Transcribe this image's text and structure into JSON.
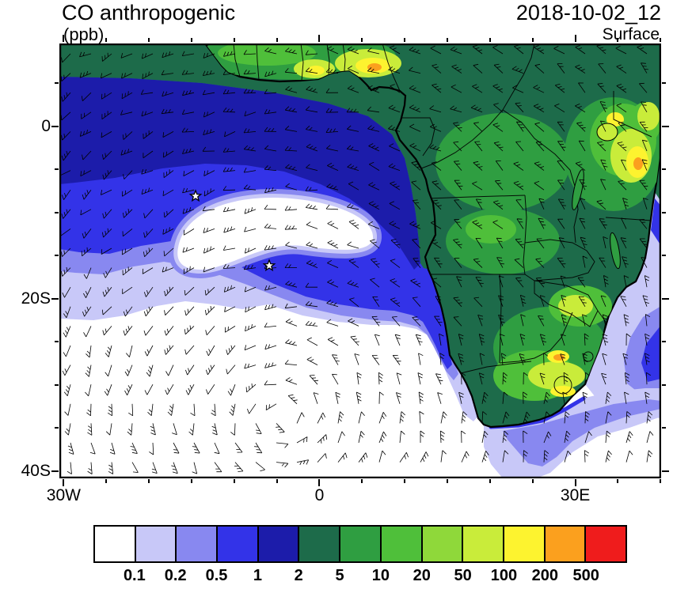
{
  "header": {
    "title": "CO anthropogenic",
    "units_label": "(ppb)",
    "datetime": "2018-10-02_12",
    "level": "Surface"
  },
  "axes": {
    "y_ticks": [
      {
        "label": "0",
        "lat": 0
      },
      {
        "label": "20S",
        "lat": -20
      },
      {
        "label": "40S",
        "lat": -40
      }
    ],
    "x_ticks": [
      {
        "label": "30W",
        "lon": -30
      },
      {
        "label": "0",
        "lon": 0
      },
      {
        "label": "30E",
        "lon": 30
      }
    ],
    "lon_minor_ticks": [
      -25,
      -20,
      -15,
      -10,
      -5,
      5,
      10,
      15,
      20,
      25,
      35,
      40
    ],
    "lat_minor_ticks": [
      5,
      -5,
      -10,
      -15,
      -25,
      -30,
      -35
    ]
  },
  "colorbar": {
    "labels": [
      "0.1",
      "0.2",
      "0.5",
      "1",
      "2",
      "5",
      "10",
      "20",
      "50",
      "100",
      "200",
      "500"
    ],
    "colors": [
      "#ffffff",
      "#c8c8f8",
      "#8888f0",
      "#3333e8",
      "#1c1caa",
      "#1d6b4a",
      "#2f9e41",
      "#4fbf3a",
      "#8fd83a",
      "#c9ec3a",
      "#fdf32f",
      "#fba01e",
      "#ef1c1c"
    ]
  },
  "markers": [
    {
      "symbol": "star",
      "approx_lon": -14.5,
      "approx_lat": -8
    },
    {
      "symbol": "star",
      "approx_lon": -5.5,
      "approx_lat": -16
    }
  ],
  "chart_data": {
    "type": "heatmap",
    "title": "CO anthropogenic",
    "units": "ppb",
    "valid_time": "2018-10-02_12",
    "level": "Surface",
    "lon_range_deg_east": [
      -30.5,
      40.3
    ],
    "lat_range_deg_north": [
      -40.8,
      9.6
    ],
    "contour_levels": [
      0.1,
      0.2,
      0.5,
      1,
      2,
      5,
      10,
      20,
      50,
      100,
      200,
      500
    ],
    "palette": [
      "#ffffff",
      "#c8c8f8",
      "#8888f0",
      "#3333e8",
      "#1c1caa",
      "#1d6b4a",
      "#2f9e41",
      "#4fbf3a",
      "#8fd83a",
      "#c9ec3a",
      "#fdf32f",
      "#fba01e",
      "#ef1c1c"
    ],
    "overlays": [
      "wind barbs",
      "coastlines",
      "country borders",
      "two star markers over the tropical South Atlantic"
    ],
    "field_summary": [
      {
        "region": "West African coastal cities (Ghana to Nigeria)",
        "co_ppb": "50-200"
      },
      {
        "region": "African interior land",
        "co_ppb": "2-10"
      },
      {
        "region": "East African highlands",
        "co_ppb": "20-200"
      },
      {
        "region": "South African Highveld",
        "co_ppb": "50-200"
      },
      {
        "region": "Equatorial Atlantic outflow plume",
        "co_ppb": "0.5-2"
      },
      {
        "region": "Plume fringe over tropical South Atlantic",
        "co_ppb": "0.1-0.5"
      },
      {
        "region": "Central South Atlantic subtropical high",
        "co_ppb": "<0.1"
      },
      {
        "region": "Mozambique Channel",
        "co_ppb": "0.1-0.5"
      }
    ],
    "wind_pattern": "anticyclonic gyre centered over the South Atlantic (~20-35S) with southeasterly trade flow north of ~15S"
  }
}
